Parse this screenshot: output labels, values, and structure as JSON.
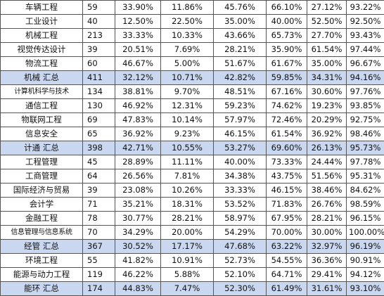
{
  "table": {
    "rows": [
      {
        "major": "车辆工程",
        "count": "59",
        "r1": "33.90%",
        "r2": "11.86%",
        "r3": "45.76%",
        "r4": "66.10%",
        "r5": "27.12%",
        "r6": "93.22%",
        "summary": false
      },
      {
        "major": "工业设计",
        "count": "40",
        "r1": "12.50%",
        "r2": "22.50%",
        "r3": "35.00%",
        "r4": "40.00%",
        "r5": "52.50%",
        "r6": "92.50%",
        "summary": false
      },
      {
        "major": "机械工程",
        "count": "213",
        "r1": "33.33%",
        "r2": "10.33%",
        "r3": "43.66%",
        "r4": "65.73%",
        "r5": "27.70%",
        "r6": "93.43%",
        "summary": false
      },
      {
        "major": "视觉传达设计",
        "count": "39",
        "r1": "20.51%",
        "r2": "7.69%",
        "r3": "28.21%",
        "r4": "35.90%",
        "r5": "61.54%",
        "r6": "97.44%",
        "summary": false
      },
      {
        "major": "物流工程",
        "count": "60",
        "r1": "46.67%",
        "r2": "5.00%",
        "r3": "51.67%",
        "r4": "61.67%",
        "r5": "35.00%",
        "r6": "96.67%",
        "summary": false
      },
      {
        "major": "机械 汇总",
        "count": "411",
        "r1": "32.12%",
        "r2": "10.71%",
        "r3": "42.82%",
        "r4": "59.85%",
        "r5": "34.31%",
        "r6": "94.16%",
        "summary": true
      },
      {
        "major": "计算机科学与技术",
        "count": "134",
        "r1": "38.81%",
        "r2": "9.70%",
        "r3": "48.51%",
        "r4": "67.16%",
        "r5": "30.60%",
        "r6": "97.76%",
        "summary": false
      },
      {
        "major": "通信工程",
        "count": "130",
        "r1": "46.92%",
        "r2": "12.31%",
        "r3": "59.23%",
        "r4": "74.62%",
        "r5": "19.23%",
        "r6": "93.85%",
        "summary": false
      },
      {
        "major": "物联网工程",
        "count": "69",
        "r1": "47.83%",
        "r2": "10.14%",
        "r3": "57.97%",
        "r4": "72.46%",
        "r5": "20.29%",
        "r6": "92.75%",
        "summary": false
      },
      {
        "major": "信息安全",
        "count": "65",
        "r1": "36.92%",
        "r2": "9.23%",
        "r3": "46.15%",
        "r4": "61.54%",
        "r5": "36.92%",
        "r6": "98.46%",
        "summary": false
      },
      {
        "major": "计通 汇总",
        "count": "398",
        "r1": "42.71%",
        "r2": "10.55%",
        "r3": "53.27%",
        "r4": "69.60%",
        "r5": "26.13%",
        "r6": "95.73%",
        "summary": true
      },
      {
        "major": "工程管理",
        "count": "45",
        "r1": "28.89%",
        "r2": "11.11%",
        "r3": "40.00%",
        "r4": "73.33%",
        "r5": "24.44%",
        "r6": "97.78%",
        "summary": false
      },
      {
        "major": "工商管理",
        "count": "64",
        "r1": "26.56%",
        "r2": "7.81%",
        "r3": "34.38%",
        "r4": "43.75%",
        "r5": "51.56%",
        "r6": "95.31%",
        "summary": false
      },
      {
        "major": "国际经济与贸易",
        "count": "39",
        "r1": "23.08%",
        "r2": "10.26%",
        "r3": "33.33%",
        "r4": "46.15%",
        "r5": "38.46%",
        "r6": "84.62%",
        "summary": false
      },
      {
        "major": "会计学",
        "count": "71",
        "r1": "35.21%",
        "r2": "18.31%",
        "r3": "53.52%",
        "r4": "71.83%",
        "r5": "26.76%",
        "r6": "98.59%",
        "summary": false
      },
      {
        "major": "金融工程",
        "count": "78",
        "r1": "30.77%",
        "r2": "28.21%",
        "r3": "58.97%",
        "r4": "67.95%",
        "r5": "28.21%",
        "r6": "96.15%",
        "summary": false
      },
      {
        "major": "信息管理与信息系统",
        "count": "70",
        "r1": "34.29%",
        "r2": "20.00%",
        "r3": "54.29%",
        "r4": "70.00%",
        "r5": "30.00%",
        "r6": "100.00%",
        "summary": false
      },
      {
        "major": "经管 汇总",
        "count": "367",
        "r1": "30.52%",
        "r2": "17.17%",
        "r3": "47.68%",
        "r4": "63.22%",
        "r5": "32.97%",
        "r6": "96.19%",
        "summary": true
      },
      {
        "major": "环境工程",
        "count": "55",
        "r1": "41.82%",
        "r2": "10.91%",
        "r3": "52.73%",
        "r4": "54.55%",
        "r5": "36.36%",
        "r6": "90.91%",
        "summary": false
      },
      {
        "major": "能源与动力工程",
        "count": "119",
        "r1": "46.22%",
        "r2": "5.88%",
        "r3": "52.10%",
        "r4": "64.71%",
        "r5": "29.41%",
        "r6": "94.12%",
        "summary": false
      },
      {
        "major": "能环 汇总",
        "count": "174",
        "r1": "44.83%",
        "r2": "7.47%",
        "r3": "52.30%",
        "r4": "61.49%",
        "r5": "31.61%",
        "r6": "93.10%",
        "summary": true
      }
    ]
  },
  "colors": {
    "summary_fill": "#c9d7f0",
    "border": "#555555"
  }
}
